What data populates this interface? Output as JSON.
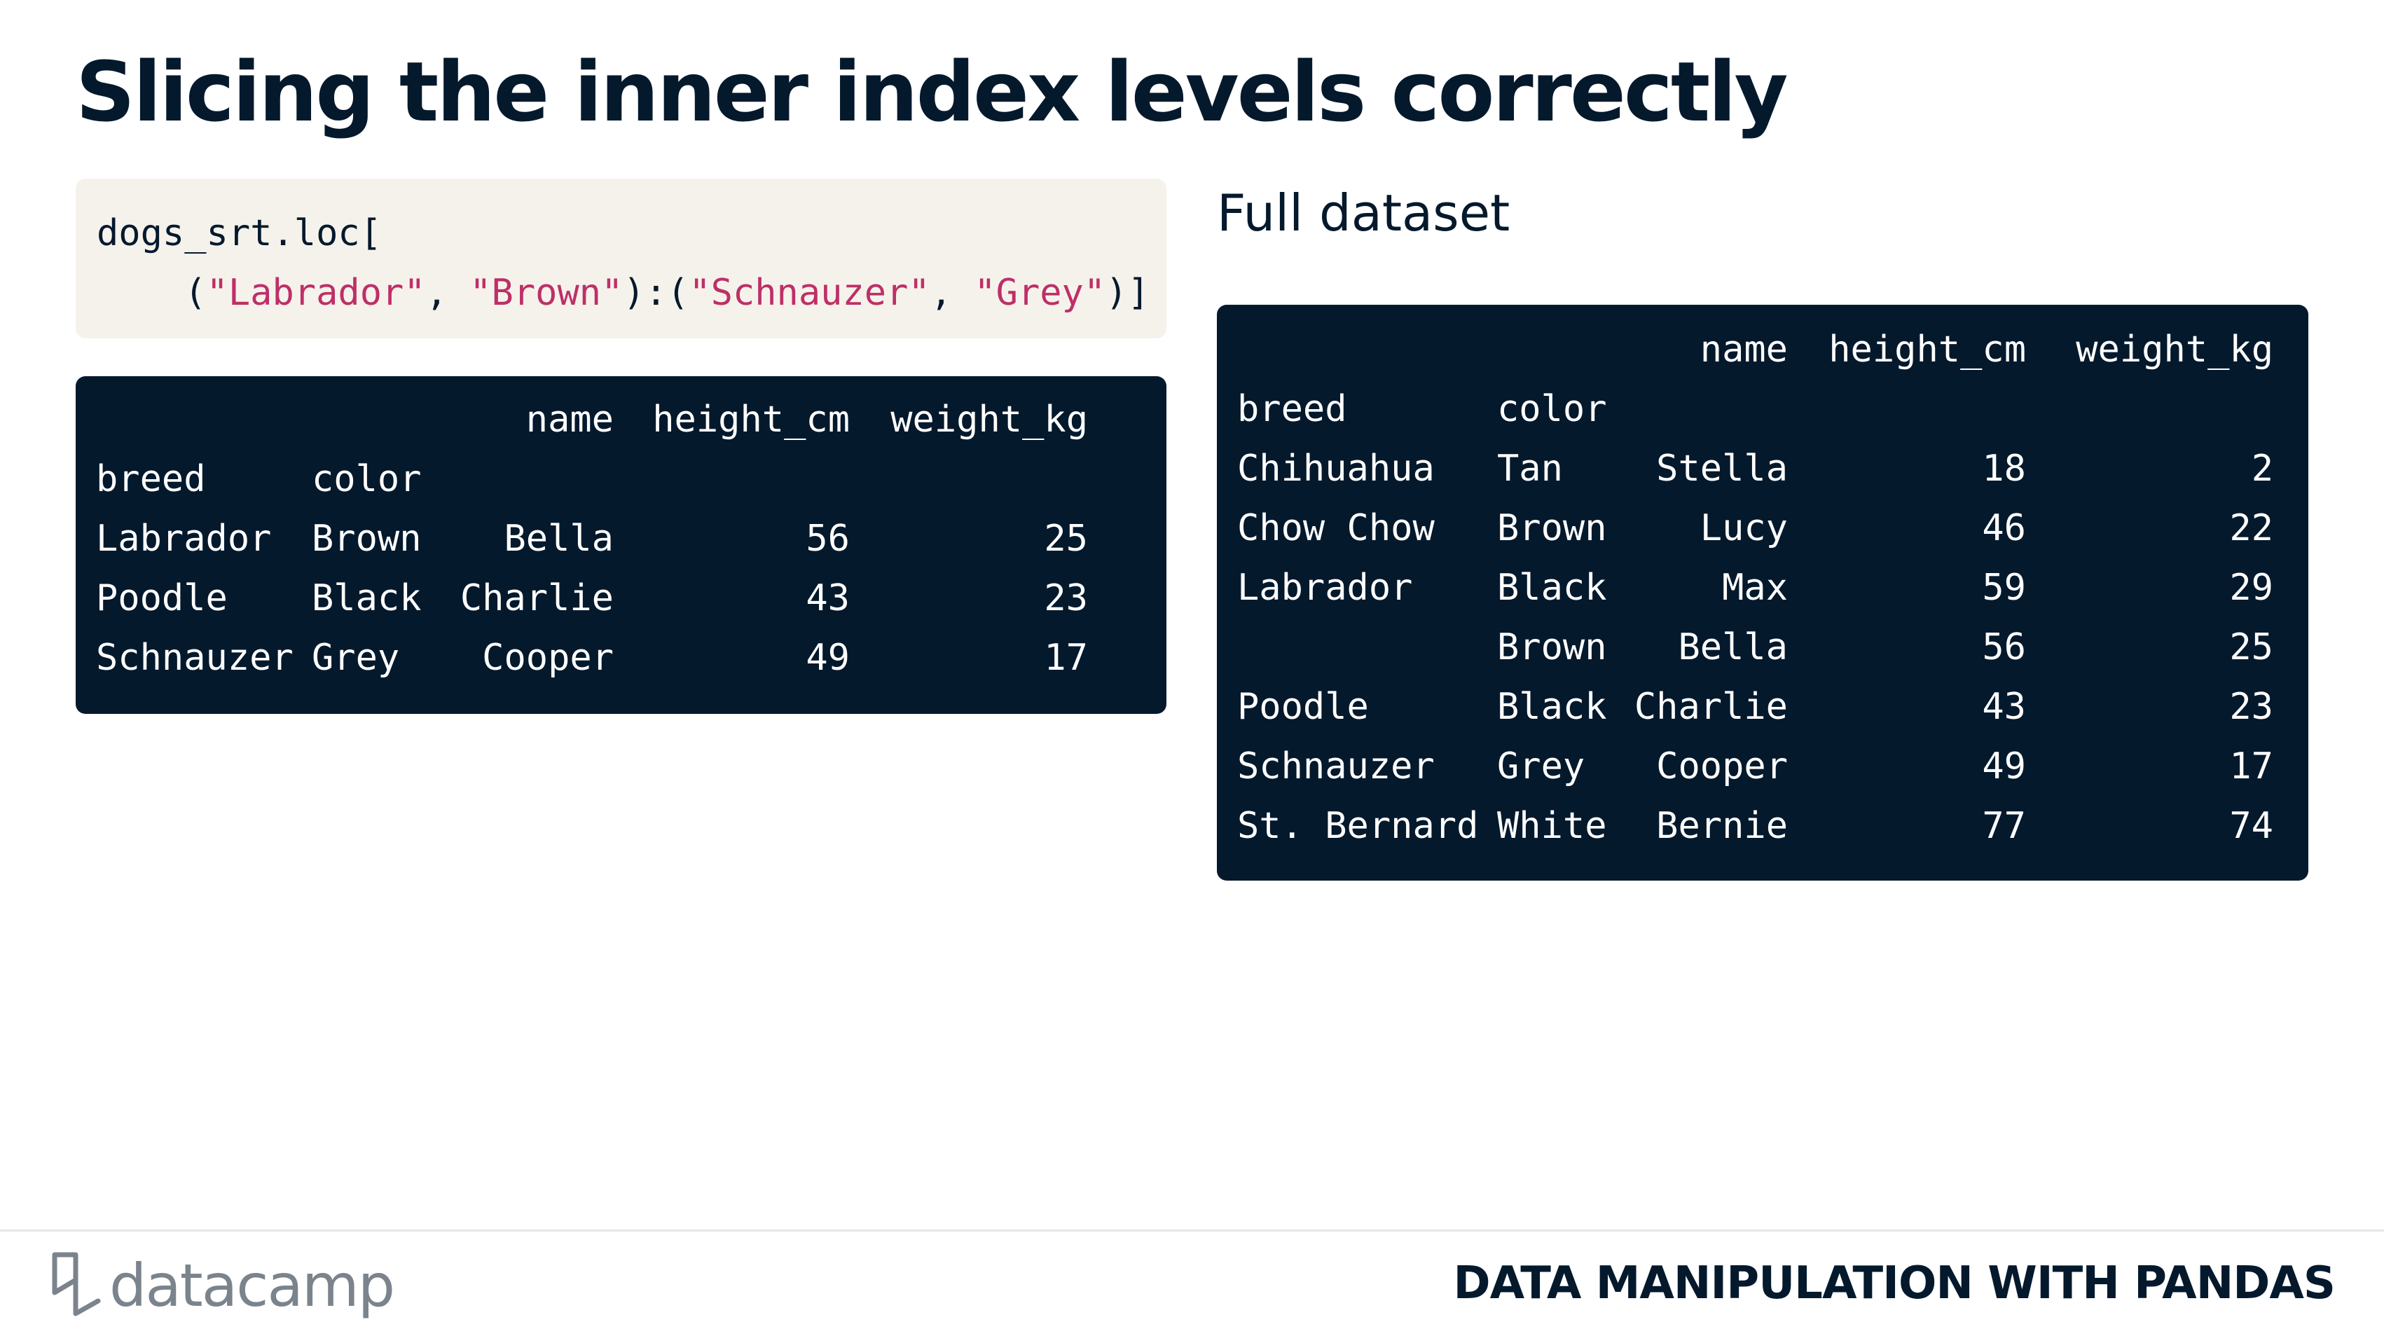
{
  "title": "Slicing the inner index levels correctly",
  "code": {
    "line1": "dogs_srt.loc[",
    "line2_indent": "    (",
    "str1": "\"Labrador\"",
    "sep1": ", ",
    "str2": "\"Brown\"",
    "mid": "):(",
    "str3": "\"Schnauzer\"",
    "sep2": ", ",
    "str4": "\"Grey\"",
    "end": ")]"
  },
  "result_table": {
    "columns": [
      "name",
      "height_cm",
      "weight_kg"
    ],
    "index_names": [
      "breed",
      "color"
    ],
    "rows": [
      {
        "breed": "Labrador",
        "color": "Brown",
        "name": "Bella",
        "height_cm": "56",
        "weight_kg": "25"
      },
      {
        "breed": "Poodle",
        "color": "Black",
        "name": "Charlie",
        "height_cm": "43",
        "weight_kg": "23"
      },
      {
        "breed": "Schnauzer",
        "color": "Grey",
        "name": "Cooper",
        "height_cm": "49",
        "weight_kg": "17"
      }
    ]
  },
  "full_label": "Full dataset",
  "full_table": {
    "columns": [
      "name",
      "height_cm",
      "weight_kg"
    ],
    "index_names": [
      "breed",
      "color"
    ],
    "rows": [
      {
        "breed": "Chihuahua",
        "color": "Tan",
        "name": "Stella",
        "height_cm": "18",
        "weight_kg": "2"
      },
      {
        "breed": "Chow Chow",
        "color": "Brown",
        "name": "Lucy",
        "height_cm": "46",
        "weight_kg": "22"
      },
      {
        "breed": "Labrador",
        "color": "Black",
        "name": "Max",
        "height_cm": "59",
        "weight_kg": "29"
      },
      {
        "breed": "",
        "color": "Brown",
        "name": "Bella",
        "height_cm": "56",
        "weight_kg": "25"
      },
      {
        "breed": "Poodle",
        "color": "Black",
        "name": "Charlie",
        "height_cm": "43",
        "weight_kg": "23"
      },
      {
        "breed": "Schnauzer",
        "color": "Grey",
        "name": "Cooper",
        "height_cm": "49",
        "weight_kg": "17"
      },
      {
        "breed": "St. Bernard",
        "color": "White",
        "name": "Bernie",
        "height_cm": "77",
        "weight_kg": "74"
      }
    ]
  },
  "footer": {
    "brand": "datacamp",
    "course": "DATA MANIPULATION WITH PANDAS"
  },
  "colors": {
    "navy": "#05192d",
    "code_bg": "#f5f2ec",
    "string": "#be2f67",
    "brand_gray": "#7b848c"
  },
  "icons": {
    "logo": "datacamp-logo-icon"
  }
}
